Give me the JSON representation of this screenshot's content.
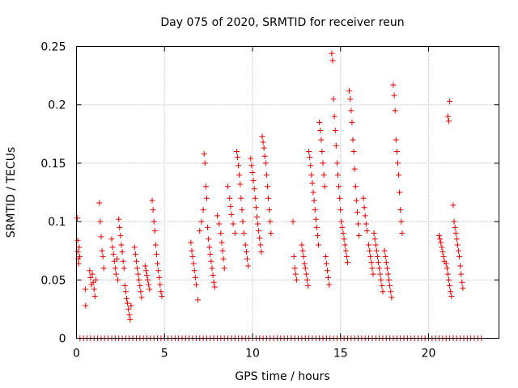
{
  "chart_data": {
    "type": "scatter",
    "title": "Day 075 of 2020, SRMTID for receiver reun",
    "xlabel": "GPS time / hours",
    "ylabel": "SRMTID / TECUs",
    "xlim": [
      0,
      24
    ],
    "ylim": [
      0,
      0.25
    ],
    "xticks": [
      0,
      5,
      10,
      15,
      20
    ],
    "xtick_labels": [
      "0",
      "5",
      "10",
      "15",
      "20"
    ],
    "yticks": [
      0,
      0.05,
      0.1,
      0.15,
      0.2,
      0.25
    ],
    "ytick_labels": [
      "0",
      "0.05",
      "0.1",
      "0.15",
      "0.2",
      "0.25"
    ],
    "grid": true,
    "marker": "plus",
    "color": "#e00000",
    "series": [
      {
        "name": "SRMTID",
        "points": [
          [
            0.05,
            0.103
          ],
          [
            0.07,
            0.084
          ],
          [
            0.08,
            0.074
          ],
          [
            0.1,
            0.068
          ],
          [
            0.12,
            0.064
          ],
          [
            0.15,
            0.078
          ],
          [
            0.18,
            0.07
          ],
          [
            0.5,
            0.042
          ],
          [
            0.52,
            0.028
          ],
          [
            0.75,
            0.058
          ],
          [
            0.8,
            0.052
          ],
          [
            0.85,
            0.046
          ],
          [
            0.9,
            0.055
          ],
          [
            0.95,
            0.048
          ],
          [
            1.0,
            0.042
          ],
          [
            1.05,
            0.036
          ],
          [
            1.1,
            0.05
          ],
          [
            1.3,
            0.116
          ],
          [
            1.35,
            0.1
          ],
          [
            1.4,
            0.087
          ],
          [
            1.45,
            0.075
          ],
          [
            1.5,
            0.07
          ],
          [
            1.55,
            0.06
          ],
          [
            2.0,
            0.085
          ],
          [
            2.05,
            0.078
          ],
          [
            2.1,
            0.072
          ],
          [
            2.15,
            0.066
          ],
          [
            2.2,
            0.06
          ],
          [
            2.25,
            0.055
          ],
          [
            2.3,
            0.068
          ],
          [
            2.35,
            0.05
          ],
          [
            2.4,
            0.102
          ],
          [
            2.45,
            0.095
          ],
          [
            2.5,
            0.088
          ],
          [
            2.55,
            0.08
          ],
          [
            2.6,
            0.074
          ],
          [
            2.65,
            0.066
          ],
          [
            2.7,
            0.06
          ],
          [
            2.75,
            0.045
          ],
          [
            2.8,
            0.04
          ],
          [
            2.85,
            0.034
          ],
          [
            2.9,
            0.03
          ],
          [
            2.95,
            0.025
          ],
          [
            3.0,
            0.02
          ],
          [
            3.05,
            0.016
          ],
          [
            3.1,
            0.028
          ],
          [
            3.3,
            0.078
          ],
          [
            3.35,
            0.072
          ],
          [
            3.4,
            0.066
          ],
          [
            3.45,
            0.06
          ],
          [
            3.5,
            0.055
          ],
          [
            3.55,
            0.05
          ],
          [
            3.6,
            0.045
          ],
          [
            3.65,
            0.04
          ],
          [
            3.7,
            0.035
          ],
          [
            3.9,
            0.062
          ],
          [
            3.95,
            0.058
          ],
          [
            4.0,
            0.054
          ],
          [
            4.05,
            0.05
          ],
          [
            4.1,
            0.046
          ],
          [
            4.15,
            0.042
          ],
          [
            4.3,
            0.118
          ],
          [
            4.35,
            0.11
          ],
          [
            4.4,
            0.1
          ],
          [
            4.45,
            0.092
          ],
          [
            4.5,
            0.08
          ],
          [
            4.55,
            0.072
          ],
          [
            4.6,
            0.064
          ],
          [
            4.65,
            0.058
          ],
          [
            4.7,
            0.052
          ],
          [
            4.75,
            0.046
          ],
          [
            4.8,
            0.04
          ],
          [
            4.85,
            0.036
          ],
          [
            6.5,
            0.082
          ],
          [
            6.55,
            0.075
          ],
          [
            6.6,
            0.07
          ],
          [
            6.65,
            0.064
          ],
          [
            6.7,
            0.058
          ],
          [
            6.75,
            0.052
          ],
          [
            6.8,
            0.046
          ],
          [
            6.9,
            0.033
          ],
          [
            7.0,
            0.092
          ],
          [
            7.1,
            0.1
          ],
          [
            7.2,
            0.11
          ],
          [
            7.25,
            0.158
          ],
          [
            7.3,
            0.15
          ],
          [
            7.35,
            0.13
          ],
          [
            7.4,
            0.12
          ],
          [
            7.45,
            0.095
          ],
          [
            7.5,
            0.085
          ],
          [
            7.55,
            0.078
          ],
          [
            7.6,
            0.072
          ],
          [
            7.65,
            0.066
          ],
          [
            7.7,
            0.06
          ],
          [
            7.75,
            0.054
          ],
          [
            7.8,
            0.048
          ],
          [
            7.85,
            0.044
          ],
          [
            8.0,
            0.105
          ],
          [
            8.1,
            0.098
          ],
          [
            8.2,
            0.09
          ],
          [
            8.25,
            0.082
          ],
          [
            8.3,
            0.075
          ],
          [
            8.35,
            0.068
          ],
          [
            8.4,
            0.06
          ],
          [
            8.6,
            0.13
          ],
          [
            8.7,
            0.12
          ],
          [
            8.75,
            0.113
          ],
          [
            8.8,
            0.106
          ],
          [
            8.9,
            0.098
          ],
          [
            9.0,
            0.09
          ],
          [
            9.1,
            0.16
          ],
          [
            9.15,
            0.155
          ],
          [
            9.2,
            0.148
          ],
          [
            9.25,
            0.14
          ],
          [
            9.3,
            0.132
          ],
          [
            9.35,
            0.12
          ],
          [
            9.4,
            0.11
          ],
          [
            9.45,
            0.1
          ],
          [
            9.5,
            0.09
          ],
          [
            9.6,
            0.08
          ],
          [
            9.65,
            0.074
          ],
          [
            9.7,
            0.068
          ],
          [
            9.75,
            0.062
          ],
          [
            9.9,
            0.154
          ],
          [
            9.95,
            0.148
          ],
          [
            10.0,
            0.142
          ],
          [
            10.05,
            0.135
          ],
          [
            10.1,
            0.128
          ],
          [
            10.15,
            0.12
          ],
          [
            10.2,
            0.112
          ],
          [
            10.25,
            0.104
          ],
          [
            10.3,
            0.098
          ],
          [
            10.35,
            0.092
          ],
          [
            10.4,
            0.086
          ],
          [
            10.45,
            0.08
          ],
          [
            10.5,
            0.074
          ],
          [
            10.55,
            0.173
          ],
          [
            10.6,
            0.168
          ],
          [
            10.65,
            0.163
          ],
          [
            10.7,
            0.156
          ],
          [
            10.75,
            0.15
          ],
          [
            10.8,
            0.14
          ],
          [
            10.85,
            0.13
          ],
          [
            10.9,
            0.12
          ],
          [
            10.95,
            0.11
          ],
          [
            11.0,
            0.1
          ],
          [
            11.05,
            0.09
          ],
          [
            12.3,
            0.1
          ],
          [
            12.35,
            0.07
          ],
          [
            12.4,
            0.06
          ],
          [
            12.45,
            0.055
          ],
          [
            12.5,
            0.05
          ],
          [
            12.8,
            0.08
          ],
          [
            12.85,
            0.075
          ],
          [
            12.9,
            0.07
          ],
          [
            12.95,
            0.064
          ],
          [
            13.0,
            0.06
          ],
          [
            13.05,
            0.055
          ],
          [
            13.1,
            0.05
          ],
          [
            13.15,
            0.045
          ],
          [
            13.2,
            0.16
          ],
          [
            13.25,
            0.155
          ],
          [
            13.3,
            0.148
          ],
          [
            13.35,
            0.14
          ],
          [
            13.4,
            0.133
          ],
          [
            13.45,
            0.125
          ],
          [
            13.5,
            0.118
          ],
          [
            13.55,
            0.11
          ],
          [
            13.6,
            0.102
          ],
          [
            13.65,
            0.095
          ],
          [
            13.7,
            0.088
          ],
          [
            13.75,
            0.08
          ],
          [
            13.8,
            0.185
          ],
          [
            13.85,
            0.178
          ],
          [
            13.9,
            0.17
          ],
          [
            13.95,
            0.16
          ],
          [
            14.0,
            0.15
          ],
          [
            14.05,
            0.14
          ],
          [
            14.1,
            0.13
          ],
          [
            14.15,
            0.07
          ],
          [
            14.2,
            0.064
          ],
          [
            14.25,
            0.058
          ],
          [
            14.3,
            0.052
          ],
          [
            14.35,
            0.046
          ],
          [
            14.5,
            0.244
          ],
          [
            14.55,
            0.238
          ],
          [
            14.6,
            0.205
          ],
          [
            14.65,
            0.19
          ],
          [
            14.7,
            0.178
          ],
          [
            14.75,
            0.165
          ],
          [
            14.8,
            0.15
          ],
          [
            14.85,
            0.14
          ],
          [
            14.9,
            0.13
          ],
          [
            14.95,
            0.12
          ],
          [
            15.0,
            0.11
          ],
          [
            15.05,
            0.1
          ],
          [
            15.1,
            0.095
          ],
          [
            15.15,
            0.09
          ],
          [
            15.2,
            0.085
          ],
          [
            15.25,
            0.08
          ],
          [
            15.3,
            0.075
          ],
          [
            15.35,
            0.07
          ],
          [
            15.4,
            0.065
          ],
          [
            15.5,
            0.212
          ],
          [
            15.55,
            0.205
          ],
          [
            15.6,
            0.195
          ],
          [
            15.65,
            0.185
          ],
          [
            15.7,
            0.17
          ],
          [
            15.75,
            0.16
          ],
          [
            15.8,
            0.145
          ],
          [
            15.85,
            0.13
          ],
          [
            15.9,
            0.118
          ],
          [
            15.95,
            0.108
          ],
          [
            16.0,
            0.098
          ],
          [
            16.05,
            0.088
          ],
          [
            16.3,
            0.12
          ],
          [
            16.35,
            0.112
          ],
          [
            16.4,
            0.105
          ],
          [
            16.45,
            0.098
          ],
          [
            16.5,
            0.092
          ],
          [
            16.6,
            0.08
          ],
          [
            16.65,
            0.075
          ],
          [
            16.7,
            0.07
          ],
          [
            16.75,
            0.065
          ],
          [
            16.8,
            0.06
          ],
          [
            16.85,
            0.055
          ],
          [
            16.9,
            0.09
          ],
          [
            16.95,
            0.085
          ],
          [
            17.0,
            0.08
          ],
          [
            17.05,
            0.075
          ],
          [
            17.1,
            0.07
          ],
          [
            17.15,
            0.065
          ],
          [
            17.2,
            0.06
          ],
          [
            17.25,
            0.055
          ],
          [
            17.3,
            0.05
          ],
          [
            17.35,
            0.045
          ],
          [
            17.4,
            0.04
          ],
          [
            17.5,
            0.075
          ],
          [
            17.55,
            0.07
          ],
          [
            17.6,
            0.065
          ],
          [
            17.65,
            0.06
          ],
          [
            17.7,
            0.055
          ],
          [
            17.75,
            0.05
          ],
          [
            17.8,
            0.045
          ],
          [
            17.85,
            0.04
          ],
          [
            17.9,
            0.035
          ],
          [
            18.0,
            0.217
          ],
          [
            18.05,
            0.208
          ],
          [
            18.1,
            0.195
          ],
          [
            18.15,
            0.17
          ],
          [
            18.2,
            0.16
          ],
          [
            18.25,
            0.15
          ],
          [
            18.3,
            0.14
          ],
          [
            18.35,
            0.125
          ],
          [
            18.4,
            0.11
          ],
          [
            18.45,
            0.1
          ],
          [
            18.5,
            0.09
          ],
          [
            20.6,
            0.088
          ],
          [
            20.65,
            0.085
          ],
          [
            20.7,
            0.082
          ],
          [
            20.75,
            0.078
          ],
          [
            20.8,
            0.074
          ],
          [
            20.85,
            0.07
          ],
          [
            20.9,
            0.066
          ],
          [
            21.0,
            0.064
          ],
          [
            21.05,
            0.06
          ],
          [
            21.1,
            0.055
          ],
          [
            21.15,
            0.05
          ],
          [
            21.2,
            0.045
          ],
          [
            21.25,
            0.04
          ],
          [
            21.3,
            0.036
          ],
          [
            21.1,
            0.19
          ],
          [
            21.15,
            0.186
          ],
          [
            21.2,
            0.203
          ],
          [
            21.4,
            0.114
          ],
          [
            21.45,
            0.1
          ],
          [
            21.5,
            0.095
          ],
          [
            21.55,
            0.09
          ],
          [
            21.6,
            0.085
          ],
          [
            21.65,
            0.08
          ],
          [
            21.7,
            0.075
          ],
          [
            21.75,
            0.07
          ],
          [
            21.8,
            0.062
          ],
          [
            21.85,
            0.055
          ],
          [
            21.9,
            0.048
          ],
          [
            21.95,
            0.043
          ]
        ],
        "zero_x": [
          0.2,
          0.4,
          0.6,
          0.8,
          1.0,
          1.2,
          1.4,
          1.6,
          1.8,
          2.0,
          2.2,
          2.4,
          2.6,
          2.8,
          3.0,
          3.2,
          3.4,
          3.6,
          3.8,
          4.0,
          4.2,
          4.4,
          4.6,
          4.8,
          5.0,
          5.2,
          5.4,
          5.6,
          5.8,
          6.0,
          6.2,
          6.4,
          6.6,
          6.8,
          7.0,
          7.2,
          7.4,
          7.6,
          7.8,
          8.0,
          8.2,
          8.4,
          8.6,
          8.8,
          9.0,
          9.2,
          9.4,
          9.6,
          9.8,
          10.0,
          10.2,
          10.4,
          10.6,
          10.8,
          11.0,
          11.2,
          11.4,
          11.6,
          11.8,
          12.0,
          12.2,
          12.4,
          12.6,
          12.8,
          13.0,
          13.2,
          13.4,
          13.6,
          13.8,
          14.0,
          14.2,
          14.4,
          14.6,
          14.8,
          15.0,
          15.2,
          15.4,
          15.6,
          15.8,
          16.0,
          16.2,
          16.4,
          16.6,
          16.8,
          17.0,
          17.2,
          17.4,
          17.6,
          17.8,
          18.0,
          18.2,
          18.4,
          18.6,
          18.8,
          19.0,
          19.2,
          19.4,
          19.6,
          19.8,
          20.0,
          20.2,
          20.4,
          20.6,
          20.8,
          21.0,
          21.2,
          21.4,
          21.6,
          21.8,
          22.0,
          22.2,
          22.4,
          22.6,
          22.8,
          23.0
        ]
      }
    ]
  }
}
